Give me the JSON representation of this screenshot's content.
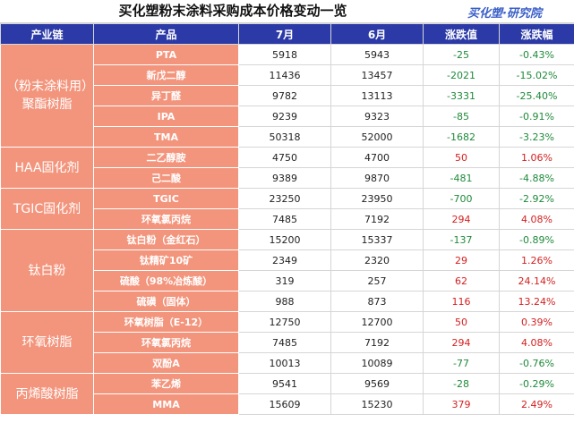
{
  "title": "买化塑粉末涂料采购成本价格变动一览",
  "brand": "买化塑·研究院",
  "headers": [
    "产业链",
    "产品",
    "7月",
    "6月",
    "涨跌值",
    "涨跌幅"
  ],
  "colors": {
    "header_bg": "#2b3aa6",
    "category_bg": "#f3957d",
    "negative": "#1f8a3a",
    "positive": "#d41f1f"
  },
  "groups": [
    {
      "category": "（粉末涂料用）聚酯树脂",
      "rows": [
        {
          "product": "PTA",
          "jul": "5918",
          "jun": "5943",
          "change": "-25",
          "pct": "-0.43%"
        },
        {
          "product": "新戊二醇",
          "jul": "11436",
          "jun": "13457",
          "change": "-2021",
          "pct": "-15.02%"
        },
        {
          "product": "异丁醛",
          "jul": "9782",
          "jun": "13113",
          "change": "-3331",
          "pct": "-25.40%"
        },
        {
          "product": "IPA",
          "jul": "9239",
          "jun": "9323",
          "change": "-85",
          "pct": "-0.91%"
        },
        {
          "product": "TMA",
          "jul": "50318",
          "jun": "52000",
          "change": "-1682",
          "pct": "-3.23%"
        }
      ]
    },
    {
      "category": "HAA固化剂",
      "rows": [
        {
          "product": "二乙醇胺",
          "jul": "4750",
          "jun": "4700",
          "change": "50",
          "pct": "1.06%"
        },
        {
          "product": "己二酸",
          "jul": "9389",
          "jun": "9870",
          "change": "-481",
          "pct": "-4.88%"
        }
      ]
    },
    {
      "category": "TGIC固化剂",
      "rows": [
        {
          "product": "TGIC",
          "jul": "23250",
          "jun": "23950",
          "change": "-700",
          "pct": "-2.92%"
        },
        {
          "product": "环氧氯丙烷",
          "jul": "7485",
          "jun": "7192",
          "change": "294",
          "pct": "4.08%"
        }
      ]
    },
    {
      "category": "钛白粉",
      "rows": [
        {
          "product": "钛白粉（金红石）",
          "jul": "15200",
          "jun": "15337",
          "change": "-137",
          "pct": "-0.89%"
        },
        {
          "product": "钛精矿10矿",
          "jul": "2349",
          "jun": "2320",
          "change": "29",
          "pct": "1.26%"
        },
        {
          "product": "硫酸（98%冶炼酸）",
          "jul": "319",
          "jun": "257",
          "change": "62",
          "pct": "24.14%"
        },
        {
          "product": "硫磺（固体）",
          "jul": "988",
          "jun": "873",
          "change": "116",
          "pct": "13.24%"
        }
      ]
    },
    {
      "category": "环氧树脂",
      "rows": [
        {
          "product": "环氧树脂（E-12）",
          "jul": "12750",
          "jun": "12700",
          "change": "50",
          "pct": "0.39%"
        },
        {
          "product": "环氧氯丙烷",
          "jul": "7485",
          "jun": "7192",
          "change": "294",
          "pct": "4.08%"
        },
        {
          "product": "双酚A",
          "jul": "10013",
          "jun": "10089",
          "change": "-77",
          "pct": "-0.76%"
        }
      ]
    },
    {
      "category": "丙烯酸树脂",
      "rows": [
        {
          "product": "苯乙烯",
          "jul": "9541",
          "jun": "9569",
          "change": "-28",
          "pct": "-0.29%"
        },
        {
          "product": "MMA",
          "jul": "15609",
          "jun": "15230",
          "change": "379",
          "pct": "2.49%"
        }
      ]
    }
  ]
}
